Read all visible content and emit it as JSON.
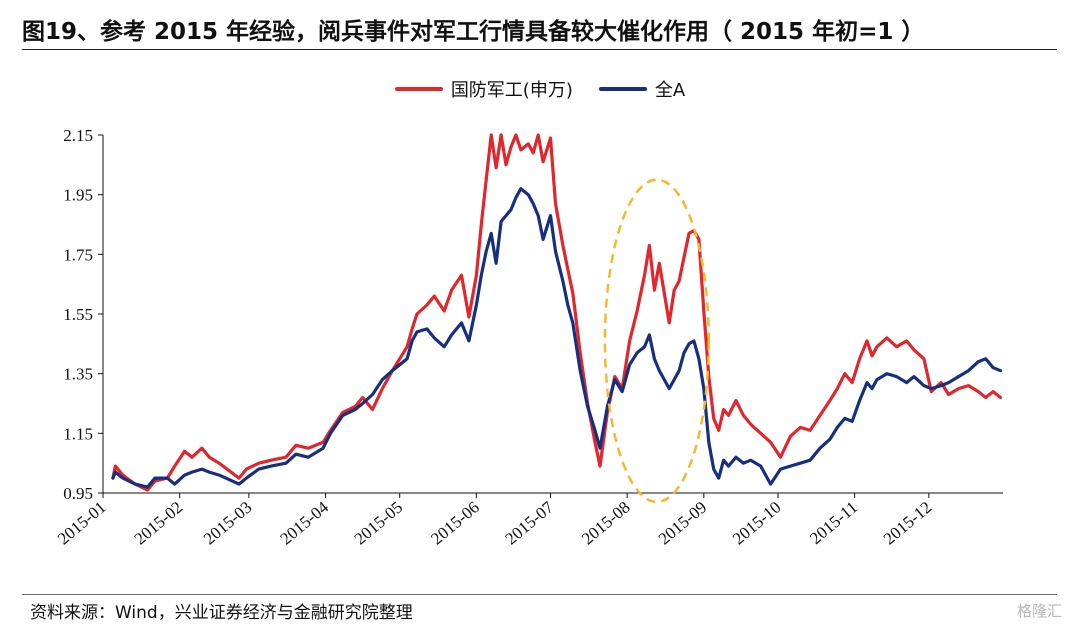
{
  "title": "图19、参考 2015 年经验，阅兵事件对军工行情具备较大催化作用（ 2015 年初=1 ）",
  "source": "资料来源：Wind，兴业证券经济与金融研究院整理",
  "watermark": "格隆汇",
  "colors": {
    "series_red": "#e1262c",
    "series_blue": "#16307f",
    "ellipse": "#f5b82e",
    "axis": "#111111"
  },
  "chart_data": {
    "type": "line",
    "title": "",
    "xlabel": "",
    "ylabel": "",
    "ylim": [
      0.95,
      2.15
    ],
    "yticks": [
      "0.95",
      "1.15",
      "1.35",
      "1.55",
      "1.75",
      "1.95",
      "2.15"
    ],
    "xticks": [
      "2015-01",
      "2015-02",
      "2015-03",
      "2015-04",
      "2015-05",
      "2015-06",
      "2015-07",
      "2015-08",
      "2015-09",
      "2015-10",
      "2015-11",
      "2015-12"
    ],
    "legend_position": "top-center",
    "grid": false,
    "annotation": "dashed ellipse highlighting the August 2015 rebound",
    "series": [
      {
        "name": "国防军工(申万)",
        "color": "#e1262c",
        "points": [
          [
            "2015-01-05",
            1.0
          ],
          [
            "2015-01-06",
            1.04
          ],
          [
            "2015-01-09",
            1.01
          ],
          [
            "2015-01-14",
            0.98
          ],
          [
            "2015-01-19",
            0.96
          ],
          [
            "2015-01-22",
            0.99
          ],
          [
            "2015-01-27",
            1.0
          ],
          [
            "2015-01-30",
            1.04
          ],
          [
            "2015-02-03",
            1.09
          ],
          [
            "2015-02-06",
            1.07
          ],
          [
            "2015-02-10",
            1.1
          ],
          [
            "2015-02-13",
            1.07
          ],
          [
            "2015-02-17",
            1.05
          ],
          [
            "2015-02-25",
            1.0
          ],
          [
            "2015-02-28",
            1.03
          ],
          [
            "2015-03-05",
            1.05
          ],
          [
            "2015-03-10",
            1.06
          ],
          [
            "2015-03-16",
            1.07
          ],
          [
            "2015-03-20",
            1.11
          ],
          [
            "2015-03-25",
            1.1
          ],
          [
            "2015-03-31",
            1.12
          ],
          [
            "2015-04-03",
            1.16
          ],
          [
            "2015-04-08",
            1.22
          ],
          [
            "2015-04-13",
            1.24
          ],
          [
            "2015-04-16",
            1.27
          ],
          [
            "2015-04-20",
            1.23
          ],
          [
            "2015-04-24",
            1.3
          ],
          [
            "2015-04-28",
            1.36
          ],
          [
            "2015-05-04",
            1.44
          ],
          [
            "2015-05-06",
            1.5
          ],
          [
            "2015-05-08",
            1.55
          ],
          [
            "2015-05-12",
            1.58
          ],
          [
            "2015-05-15",
            1.61
          ],
          [
            "2015-05-19",
            1.56
          ],
          [
            "2015-05-22",
            1.63
          ],
          [
            "2015-05-26",
            1.68
          ],
          [
            "2015-05-29",
            1.54
          ],
          [
            "2015-06-01",
            1.68
          ],
          [
            "2015-06-03",
            1.85
          ],
          [
            "2015-06-05",
            2.0
          ],
          [
            "2015-06-07",
            2.15
          ],
          [
            "2015-06-09",
            2.04
          ],
          [
            "2015-06-11",
            2.15
          ],
          [
            "2015-06-13",
            2.05
          ],
          [
            "2015-06-15",
            2.11
          ],
          [
            "2015-06-17",
            2.15
          ],
          [
            "2015-06-19",
            2.1
          ],
          [
            "2015-06-22",
            2.12
          ],
          [
            "2015-06-24",
            2.09
          ],
          [
            "2015-06-26",
            2.15
          ],
          [
            "2015-06-28",
            2.06
          ],
          [
            "2015-07-01",
            2.14
          ],
          [
            "2015-07-03",
            1.92
          ],
          [
            "2015-07-06",
            1.78
          ],
          [
            "2015-07-08",
            1.7
          ],
          [
            "2015-07-10",
            1.62
          ],
          [
            "2015-07-13",
            1.42
          ],
          [
            "2015-07-16",
            1.25
          ],
          [
            "2015-07-19",
            1.12
          ],
          [
            "2015-07-21",
            1.04
          ],
          [
            "2015-07-24",
            1.22
          ],
          [
            "2015-07-27",
            1.34
          ],
          [
            "2015-07-30",
            1.3
          ],
          [
            "2015-08-02",
            1.46
          ],
          [
            "2015-08-05",
            1.56
          ],
          [
            "2015-08-08",
            1.68
          ],
          [
            "2015-08-10",
            1.78
          ],
          [
            "2015-08-12",
            1.63
          ],
          [
            "2015-08-14",
            1.72
          ],
          [
            "2015-08-16",
            1.62
          ],
          [
            "2015-08-18",
            1.52
          ],
          [
            "2015-08-20",
            1.63
          ],
          [
            "2015-08-22",
            1.66
          ],
          [
            "2015-08-24",
            1.74
          ],
          [
            "2015-08-26",
            1.82
          ],
          [
            "2015-08-28",
            1.83
          ],
          [
            "2015-08-30",
            1.8
          ],
          [
            "2015-09-01",
            1.56
          ],
          [
            "2015-09-03",
            1.34
          ],
          [
            "2015-09-05",
            1.2
          ],
          [
            "2015-09-07",
            1.16
          ],
          [
            "2015-09-09",
            1.23
          ],
          [
            "2015-09-11",
            1.21
          ],
          [
            "2015-09-14",
            1.26
          ],
          [
            "2015-09-17",
            1.21
          ],
          [
            "2015-09-20",
            1.18
          ],
          [
            "2015-09-24",
            1.15
          ],
          [
            "2015-09-28",
            1.12
          ],
          [
            "2015-10-02",
            1.07
          ],
          [
            "2015-10-06",
            1.14
          ],
          [
            "2015-10-10",
            1.17
          ],
          [
            "2015-10-14",
            1.16
          ],
          [
            "2015-10-18",
            1.21
          ],
          [
            "2015-10-22",
            1.26
          ],
          [
            "2015-10-25",
            1.3
          ],
          [
            "2015-10-28",
            1.35
          ],
          [
            "2015-10-31",
            1.32
          ],
          [
            "2015-11-03",
            1.4
          ],
          [
            "2015-11-06",
            1.46
          ],
          [
            "2015-11-08",
            1.41
          ],
          [
            "2015-11-10",
            1.44
          ],
          [
            "2015-11-14",
            1.47
          ],
          [
            "2015-11-18",
            1.44
          ],
          [
            "2015-11-22",
            1.46
          ],
          [
            "2015-11-25",
            1.43
          ],
          [
            "2015-11-29",
            1.4
          ],
          [
            "2015-12-02",
            1.29
          ],
          [
            "2015-12-06",
            1.32
          ],
          [
            "2015-12-09",
            1.28
          ],
          [
            "2015-12-13",
            1.3
          ],
          [
            "2015-12-17",
            1.31
          ],
          [
            "2015-12-21",
            1.29
          ],
          [
            "2015-12-24",
            1.27
          ],
          [
            "2015-12-27",
            1.29
          ],
          [
            "2015-12-30",
            1.27
          ]
        ]
      },
      {
        "name": "全A",
        "color": "#16307f",
        "points": [
          [
            "2015-01-05",
            1.0
          ],
          [
            "2015-01-06",
            1.02
          ],
          [
            "2015-01-09",
            1.0
          ],
          [
            "2015-01-14",
            0.98
          ],
          [
            "2015-01-19",
            0.97
          ],
          [
            "2015-01-22",
            1.0
          ],
          [
            "2015-01-27",
            1.0
          ],
          [
            "2015-01-30",
            0.98
          ],
          [
            "2015-02-03",
            1.01
          ],
          [
            "2015-02-06",
            1.02
          ],
          [
            "2015-02-10",
            1.03
          ],
          [
            "2015-02-13",
            1.02
          ],
          [
            "2015-02-17",
            1.01
          ],
          [
            "2015-02-25",
            0.98
          ],
          [
            "2015-02-28",
            1.0
          ],
          [
            "2015-03-05",
            1.03
          ],
          [
            "2015-03-10",
            1.04
          ],
          [
            "2015-03-16",
            1.05
          ],
          [
            "2015-03-20",
            1.08
          ],
          [
            "2015-03-25",
            1.07
          ],
          [
            "2015-03-31",
            1.1
          ],
          [
            "2015-04-03",
            1.15
          ],
          [
            "2015-04-08",
            1.21
          ],
          [
            "2015-04-13",
            1.23
          ],
          [
            "2015-04-16",
            1.25
          ],
          [
            "2015-04-20",
            1.28
          ],
          [
            "2015-04-24",
            1.33
          ],
          [
            "2015-04-28",
            1.36
          ],
          [
            "2015-05-04",
            1.4
          ],
          [
            "2015-05-06",
            1.46
          ],
          [
            "2015-05-08",
            1.49
          ],
          [
            "2015-05-12",
            1.5
          ],
          [
            "2015-05-15",
            1.47
          ],
          [
            "2015-05-19",
            1.44
          ],
          [
            "2015-05-22",
            1.48
          ],
          [
            "2015-05-26",
            1.52
          ],
          [
            "2015-05-29",
            1.46
          ],
          [
            "2015-06-01",
            1.58
          ],
          [
            "2015-06-03",
            1.68
          ],
          [
            "2015-06-05",
            1.76
          ],
          [
            "2015-06-07",
            1.82
          ],
          [
            "2015-06-09",
            1.72
          ],
          [
            "2015-06-11",
            1.86
          ],
          [
            "2015-06-13",
            1.88
          ],
          [
            "2015-06-15",
            1.9
          ],
          [
            "2015-06-17",
            1.94
          ],
          [
            "2015-06-19",
            1.97
          ],
          [
            "2015-06-22",
            1.95
          ],
          [
            "2015-06-24",
            1.92
          ],
          [
            "2015-06-26",
            1.88
          ],
          [
            "2015-06-28",
            1.8
          ],
          [
            "2015-07-01",
            1.88
          ],
          [
            "2015-07-03",
            1.76
          ],
          [
            "2015-07-06",
            1.66
          ],
          [
            "2015-07-08",
            1.58
          ],
          [
            "2015-07-10",
            1.52
          ],
          [
            "2015-07-13",
            1.36
          ],
          [
            "2015-07-16",
            1.24
          ],
          [
            "2015-07-19",
            1.16
          ],
          [
            "2015-07-21",
            1.1
          ],
          [
            "2015-07-24",
            1.24
          ],
          [
            "2015-07-27",
            1.33
          ],
          [
            "2015-07-30",
            1.29
          ],
          [
            "2015-08-02",
            1.38
          ],
          [
            "2015-08-05",
            1.42
          ],
          [
            "2015-08-08",
            1.44
          ],
          [
            "2015-08-10",
            1.48
          ],
          [
            "2015-08-12",
            1.4
          ],
          [
            "2015-08-14",
            1.36
          ],
          [
            "2015-08-16",
            1.33
          ],
          [
            "2015-08-18",
            1.3
          ],
          [
            "2015-08-20",
            1.33
          ],
          [
            "2015-08-22",
            1.36
          ],
          [
            "2015-08-24",
            1.42
          ],
          [
            "2015-08-26",
            1.45
          ],
          [
            "2015-08-28",
            1.46
          ],
          [
            "2015-08-30",
            1.4
          ],
          [
            "2015-09-01",
            1.3
          ],
          [
            "2015-09-03",
            1.12
          ],
          [
            "2015-09-05",
            1.03
          ],
          [
            "2015-09-07",
            1.0
          ],
          [
            "2015-09-09",
            1.06
          ],
          [
            "2015-09-11",
            1.04
          ],
          [
            "2015-09-14",
            1.07
          ],
          [
            "2015-09-17",
            1.05
          ],
          [
            "2015-09-20",
            1.06
          ],
          [
            "2015-09-24",
            1.04
          ],
          [
            "2015-09-28",
            0.98
          ],
          [
            "2015-10-02",
            1.03
          ],
          [
            "2015-10-06",
            1.04
          ],
          [
            "2015-10-10",
            1.05
          ],
          [
            "2015-10-14",
            1.06
          ],
          [
            "2015-10-18",
            1.1
          ],
          [
            "2015-10-22",
            1.13
          ],
          [
            "2015-10-25",
            1.17
          ],
          [
            "2015-10-28",
            1.2
          ],
          [
            "2015-10-31",
            1.19
          ],
          [
            "2015-11-03",
            1.26
          ],
          [
            "2015-11-06",
            1.32
          ],
          [
            "2015-11-08",
            1.3
          ],
          [
            "2015-11-10",
            1.33
          ],
          [
            "2015-11-14",
            1.35
          ],
          [
            "2015-11-18",
            1.34
          ],
          [
            "2015-11-22",
            1.32
          ],
          [
            "2015-11-25",
            1.34
          ],
          [
            "2015-11-29",
            1.31
          ],
          [
            "2015-12-02",
            1.3
          ],
          [
            "2015-12-06",
            1.31
          ],
          [
            "2015-12-09",
            1.32
          ],
          [
            "2015-12-13",
            1.34
          ],
          [
            "2015-12-17",
            1.36
          ],
          [
            "2015-12-21",
            1.39
          ],
          [
            "2015-12-24",
            1.4
          ],
          [
            "2015-12-27",
            1.37
          ],
          [
            "2015-12-30",
            1.36
          ]
        ]
      }
    ]
  }
}
